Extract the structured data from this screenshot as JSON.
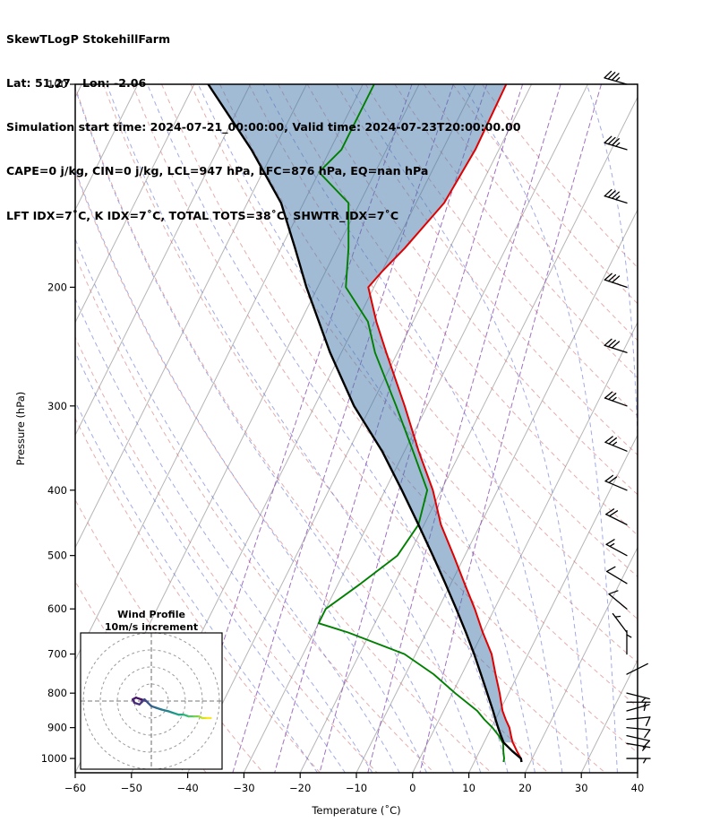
{
  "header": {
    "line1": "SkewTLogP StokehillFarm",
    "line2": "Lat: 51.27   Lon: -2.06",
    "line3": "Simulation start time: 2024-07-21_00:00:00, Valid time: 2024-07-23T20:00:00.00",
    "line4": "CAPE=0 j/kg, CIN=0 j/kg, LCL=947 hPa, LFC=876 hPa, EQ=nan hPa",
    "line5": "LFT IDX=7˚C, K IDX=7˚C, TOTAL TOTS=38˚C, SHWTR_IDX=7˚C"
  },
  "axes": {
    "xlabel": "Temperature (˚C)",
    "ylabel": "Pressure (hPa)",
    "x_ticks": [
      -60,
      -50,
      -40,
      -30,
      -20,
      -10,
      0,
      10,
      20,
      30,
      40
    ],
    "y_ticks": [
      100,
      200,
      300,
      400,
      500,
      600,
      700,
      800,
      900,
      1000
    ],
    "temperature_range_degC": [
      -60,
      40
    ],
    "pressure_range_hPa": [
      100,
      1050
    ],
    "skew": 0.5
  },
  "inset": {
    "title_line1": "Wind Profile",
    "title_line2": "10m/s increment",
    "ring_increment": 10
  },
  "colors": {
    "temperature": "#e00000",
    "dewpoint": "#008000",
    "parcel": "#000000",
    "cape_shade": "rgba(70,120,170,0.5)",
    "isotherm": "#b5b5b5",
    "dry_adiabat": "#cf6a6a",
    "moist_adiabat": "#5566cc",
    "mixing_ratio": "#8a4fb0",
    "barb": "#000000",
    "frame": "#000000"
  },
  "chart_data": {
    "type": "skewt_log_p",
    "title": "SkewTLogP StokehillFarm",
    "units": {
      "pressure": "hPa",
      "temperature": "degC",
      "wind": "m/s"
    },
    "indices": {
      "CAPE_j_kg": 0,
      "CIN_j_kg": 0,
      "LCL_hPa": 947,
      "LFC_hPa": 876,
      "EQ_hPa": "nan",
      "LFT_IDX_C": 7,
      "K_IDX_C": 7,
      "TOTAL_TOTS_C": 38,
      "SHWTR_IDX_C": 7
    },
    "temperature_profile": {
      "pressure": [
        1012,
        1000,
        975,
        950,
        947,
        925,
        900,
        875,
        850,
        800,
        750,
        700,
        650,
        600,
        550,
        500,
        450,
        400,
        350,
        300,
        250,
        225,
        200,
        190,
        175,
        150,
        125,
        100
      ],
      "temperature": [
        18.4,
        18,
        16.6,
        15.3,
        15.1,
        14.2,
        13.2,
        11.8,
        10.5,
        8.4,
        6,
        3.5,
        0,
        -3.5,
        -7.6,
        -12,
        -17,
        -21.5,
        -27.5,
        -34,
        -42,
        -46.5,
        -51,
        -50,
        -48,
        -45,
        -44.2,
        -44.5
      ]
    },
    "dewpoint_profile": {
      "pressure": [
        1012,
        1000,
        975,
        950,
        925,
        900,
        875,
        850,
        800,
        750,
        700,
        650,
        630,
        600,
        550,
        500,
        450,
        400,
        350,
        300,
        250,
        225,
        200,
        175,
        150,
        135,
        125,
        100
      ],
      "dewpoint": [
        15.2,
        15,
        14.2,
        13.5,
        12,
        10.2,
        8,
        6,
        0.5,
        -5,
        -12,
        -24,
        -30,
        -30,
        -26,
        -22,
        -21,
        -22.5,
        -28.5,
        -35.5,
        -44,
        -48,
        -55,
        -58,
        -62,
        -70,
        -68,
        -68
      ]
    },
    "parcel_profile": {
      "pressure": [
        1012,
        1000,
        975,
        947,
        925,
        900,
        875,
        850,
        800,
        750,
        700,
        650,
        600,
        550,
        500,
        450,
        400,
        350,
        300,
        250,
        200,
        175,
        150,
        125,
        100
      ],
      "temperature": [
        18.4,
        18,
        15.8,
        13.5,
        12.4,
        11.2,
        10,
        8.8,
        6.2,
        3.4,
        0.4,
        -3,
        -6.8,
        -11,
        -15.7,
        -21,
        -27,
        -34,
        -43,
        -52,
        -62,
        -67.5,
        -74,
        -84,
        -97.5
      ]
    },
    "winds": [
      {
        "p": 1000,
        "u": -3,
        "v": 0,
        "color": "#440154"
      },
      {
        "p": 950,
        "u": -6,
        "v": 1,
        "color": "#46085c"
      },
      {
        "p": 925,
        "u": -9,
        "v": 2,
        "color": "#471063"
      },
      {
        "p": 900,
        "u": -11,
        "v": 1,
        "color": "#481769"
      },
      {
        "p": 875,
        "u": -10,
        "v": -1,
        "color": "#482173"
      },
      {
        "p": 850,
        "u": -7,
        "v": -2,
        "color": "#472a7a"
      },
      {
        "p": 825,
        "u": -5,
        "v": 0,
        "color": "#46327e"
      },
      {
        "p": 800,
        "u": -4,
        "v": 1,
        "color": "#433e85"
      },
      {
        "p": 750,
        "u": -2,
        "v": -1,
        "color": "#3e4989"
      },
      {
        "p": 700,
        "u": 0,
        "v": -3,
        "color": "#38568b"
      },
      {
        "p": 650,
        "u": 3,
        "v": -4,
        "color": "#32648e"
      },
      {
        "p": 600,
        "u": 6,
        "v": -5,
        "color": "#2c718e"
      },
      {
        "p": 550,
        "u": 10,
        "v": -6,
        "color": "#277f8e"
      },
      {
        "p": 500,
        "u": 13,
        "v": -7,
        "color": "#228c8d"
      },
      {
        "p": 450,
        "u": 16,
        "v": -8,
        "color": "#1f9a8a"
      },
      {
        "p": 400,
        "u": 19,
        "v": -8,
        "color": "#22a884"
      },
      {
        "p": 350,
        "u": 22,
        "v": -9,
        "color": "#35b779"
      },
      {
        "p": 300,
        "u": 25,
        "v": -9,
        "color": "#53c568"
      },
      {
        "p": 250,
        "u": 28,
        "v": -9,
        "color": "#7ad151"
      },
      {
        "p": 200,
        "u": 30,
        "v": -10,
        "color": "#a5db36"
      },
      {
        "p": 150,
        "u": 32,
        "v": -10,
        "color": "#d2e21b"
      },
      {
        "p": 125,
        "u": 33,
        "v": -10,
        "color": "#e8e419"
      },
      {
        "p": 100,
        "u": 35,
        "v": -10,
        "color": "#fde725"
      }
    ],
    "background": {
      "isotherms_degC": {
        "min": -140,
        "max": 40,
        "step": 10
      },
      "dry_adiabats_degC": {
        "min": -40,
        "max": 160,
        "step": 10
      },
      "moist_adiabats_degC": {
        "min": -20,
        "max": 40,
        "step": 5
      },
      "mixing_ratio_g_kg": [
        0.1,
        0.25,
        0.5,
        1,
        2,
        4
      ]
    }
  }
}
